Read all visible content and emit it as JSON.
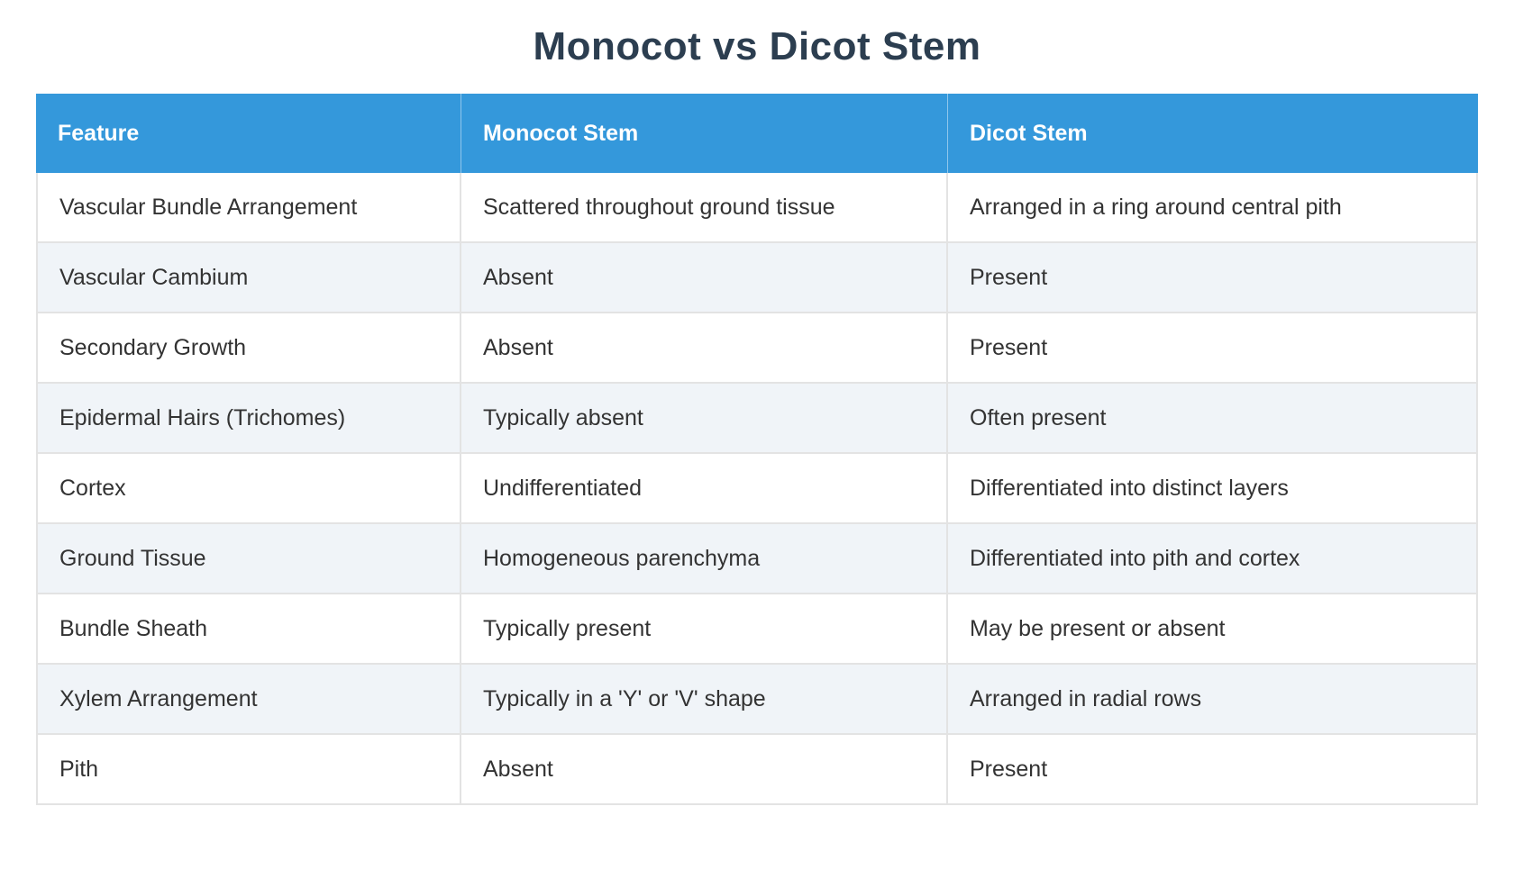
{
  "title": "Monocot vs Dicot Stem",
  "theme": {
    "header_bg": "#3498db",
    "header_text": "#ffffff",
    "stripe_bg": "#f0f4f8",
    "row_bg": "#ffffff",
    "border": "#e3e3e3",
    "title_color": "#2c3e50",
    "cell_text": "#333333"
  },
  "table": {
    "columns": [
      "Feature",
      "Monocot Stem",
      "Dicot Stem"
    ],
    "rows": [
      {
        "feature": "Vascular Bundle Arrangement",
        "monocot": "Scattered throughout ground tissue",
        "dicot": "Arranged in a ring around central pith"
      },
      {
        "feature": "Vascular Cambium",
        "monocot": "Absent",
        "dicot": "Present"
      },
      {
        "feature": "Secondary Growth",
        "monocot": "Absent",
        "dicot": "Present"
      },
      {
        "feature": "Epidermal Hairs (Trichomes)",
        "monocot": "Typically absent",
        "dicot": "Often present"
      },
      {
        "feature": "Cortex",
        "monocot": "Undifferentiated",
        "dicot": "Differentiated into distinct layers"
      },
      {
        "feature": "Ground Tissue",
        "monocot": "Homogeneous parenchyma",
        "dicot": "Differentiated into pith and cortex"
      },
      {
        "feature": "Bundle Sheath",
        "monocot": "Typically present",
        "dicot": "May be present or absent"
      },
      {
        "feature": "Xylem Arrangement",
        "monocot": "Typically in a 'Y' or 'V' shape",
        "dicot": "Arranged in radial rows"
      },
      {
        "feature": "Pith",
        "monocot": "Absent",
        "dicot": "Present"
      }
    ]
  }
}
